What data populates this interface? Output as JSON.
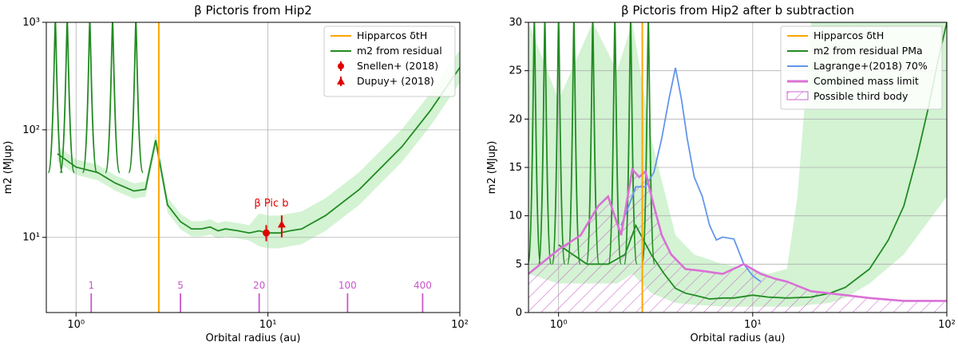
{
  "chart_data": [
    {
      "type": "line",
      "title": "β Pictoris from Hip2",
      "xlabel": "Orbital radius (au)",
      "ylabel": "m2 (MJup)",
      "xscale": "log",
      "yscale": "log",
      "xlim": [
        0.7,
        100
      ],
      "ylim": [
        2,
        1000
      ],
      "x_ticks": [
        {
          "v": 1,
          "label": "10⁰"
        },
        {
          "v": 10,
          "label": "10¹"
        },
        {
          "v": 100,
          "label": "10²"
        }
      ],
      "y_ticks": [
        {
          "v": 10,
          "label": "10¹"
        },
        {
          "v": 100,
          "label": "10²"
        },
        {
          "v": 1000,
          "label": "10³"
        }
      ],
      "hipparcos_line_x": 2.7,
      "period_marks": {
        "x": [
          1.2,
          3.5,
          9.0,
          26.0,
          64.0
        ],
        "labels": [
          "1",
          "5",
          "20",
          "100",
          "400"
        ]
      },
      "series": [
        {
          "name": "m2 from residual",
          "x": [
            0.8,
            1.0,
            1.3,
            1.6,
            2.0,
            2.3,
            2.6,
            3.0,
            3.5,
            4.0,
            4.5,
            5.0,
            5.5,
            6.0,
            7.0,
            8.0,
            9.0,
            10.0,
            11.5,
            13.0,
            15.0,
            20.0,
            30.0,
            50.0,
            70.0,
            100.0
          ],
          "y": [
            60,
            45,
            40,
            32,
            27,
            28,
            80,
            20,
            14,
            12,
            12,
            12.5,
            11.5,
            12,
            11.5,
            11,
            11.5,
            11,
            11,
            11.5,
            12,
            16,
            28,
            70,
            150,
            380
          ]
        },
        {
          "name": "Snellen+ (2018)",
          "x": [
            9.8
          ],
          "y": [
            11
          ]
        },
        {
          "name": "Dupuy+ (2018)",
          "x": [
            11.8
          ],
          "y": [
            13
          ]
        }
      ],
      "legend": [
        "Hipparcos δtH",
        "m2 from residual",
        "Snellen+ (2018)",
        "Dupuy+ (2018)"
      ],
      "annotation": "β Pic b"
    },
    {
      "type": "line",
      "title": "β Pictoris from Hip2 after b subtraction",
      "xlabel": "Orbital radius (au)",
      "ylabel": "m2 (MJup)",
      "xscale": "log",
      "yscale": "linear",
      "xlim": [
        0.7,
        100
      ],
      "ylim": [
        0,
        30
      ],
      "x_ticks": [
        {
          "v": 1,
          "label": "10⁰"
        },
        {
          "v": 10,
          "label": "10¹"
        },
        {
          "v": 100,
          "label": "10²"
        }
      ],
      "y_ticks": [
        {
          "v": 0,
          "label": "0"
        },
        {
          "v": 5,
          "label": "5"
        },
        {
          "v": 10,
          "label": "10"
        },
        {
          "v": 15,
          "label": "15"
        },
        {
          "v": 20,
          "label": "20"
        },
        {
          "v": 25,
          "label": "25"
        },
        {
          "v": 30,
          "label": "30"
        }
      ],
      "hipparcos_line_x": 2.7,
      "series": [
        {
          "name": "m2 from residual PMa",
          "x": [
            1.0,
            1.4,
            1.8,
            2.2,
            2.5,
            3.0,
            3.5,
            4.0,
            4.5,
            5.0,
            6.0,
            7.0,
            8.0,
            10.0,
            12.0,
            15.0,
            20.0,
            25.0,
            30.0,
            40.0,
            50.0,
            60.0,
            70.0,
            80.0,
            90.0,
            100.0
          ],
          "y": [
            7,
            5,
            5,
            6,
            9,
            6,
            4,
            2.5,
            2,
            1.8,
            1.4,
            1.5,
            1.5,
            1.8,
            1.6,
            1.5,
            1.6,
            2,
            2.6,
            4.5,
            7.5,
            11,
            16,
            21,
            26,
            30
          ]
        },
        {
          "name": "Lagrange+(2018) 70%",
          "x": [
            2.1,
            2.3,
            2.5,
            2.8,
            3.1,
            3.4,
            3.7,
            4.0,
            4.3,
            4.6,
            5.0,
            5.5,
            6.0,
            6.5,
            7.0,
            8.0,
            9.0,
            10.0,
            11.0
          ],
          "y": [
            9,
            11,
            13,
            13,
            14.5,
            18,
            22,
            25.3,
            22,
            18,
            14,
            12,
            9,
            7.5,
            7.8,
            7.6,
            5,
            3.8,
            3.2
          ]
        },
        {
          "name": "Combined mass limit",
          "x": [
            0.7,
            1.0,
            1.3,
            1.6,
            1.8,
            2.1,
            2.4,
            2.6,
            2.8,
            3.1,
            3.4,
            3.8,
            4.5,
            5.5,
            7.0,
            9.0,
            11.0,
            13.0,
            15.0,
            20.0,
            30.0,
            40.0,
            60.0,
            100.0
          ],
          "y": [
            4,
            6.5,
            8,
            11,
            12,
            8,
            14.8,
            14,
            14.6,
            11,
            8,
            6,
            4.5,
            4.3,
            4,
            5,
            4,
            3.5,
            3.2,
            2.2,
            1.8,
            1.5,
            1.2,
            1.2
          ]
        }
      ],
      "legend": [
        "Hipparcos δtH",
        "m2 from residual PMa",
        "Lagrange+(2018) 70%",
        "Combined mass limit",
        "Possible third body"
      ]
    }
  ]
}
